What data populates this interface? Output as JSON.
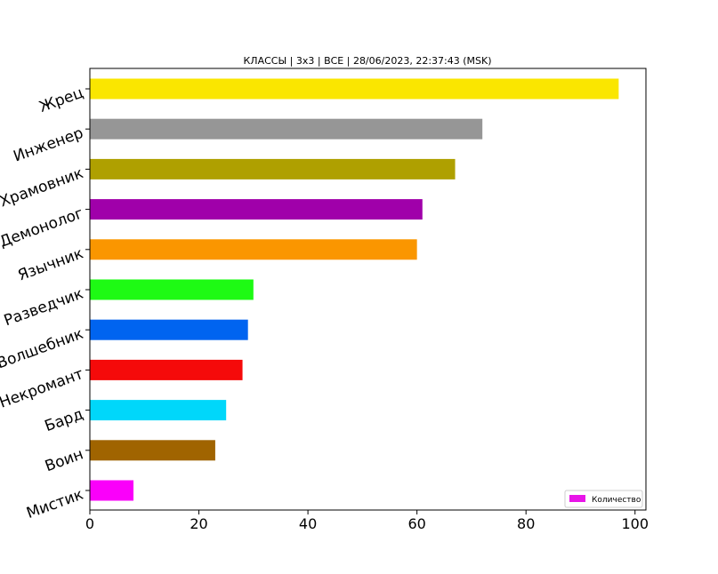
{
  "chart_data": {
    "type": "bar",
    "orientation": "horizontal",
    "title": "КЛАССЫ | 3х3 | ВСЕ | 28/06/2023, 22:37:43 (MSK)",
    "xlabel": "",
    "ylabel": "",
    "xlim": [
      0,
      102
    ],
    "x_ticks": [
      0,
      20,
      40,
      60,
      80,
      100
    ],
    "grid": false,
    "legend_position": "lower-right",
    "legend_entries": [
      {
        "label": "Количество",
        "color": "#e815e8"
      }
    ],
    "categories": [
      "Жрец",
      "Инженер",
      "Храмовник",
      "Демонолог",
      "Язычник",
      "Разведчик",
      "Волшебник",
      "Некромант",
      "Бард",
      "Воин",
      "Мистик"
    ],
    "values": [
      97,
      72,
      67,
      61,
      60,
      30,
      29,
      28,
      25,
      23,
      8
    ],
    "colors": [
      "#fae600",
      "#969696",
      "#afa000",
      "#a000aa",
      "#fa9600",
      "#1efa14",
      "#0064f0",
      "#f50a0a",
      "#00d7fa",
      "#a06400",
      "#fa00fa"
    ]
  }
}
